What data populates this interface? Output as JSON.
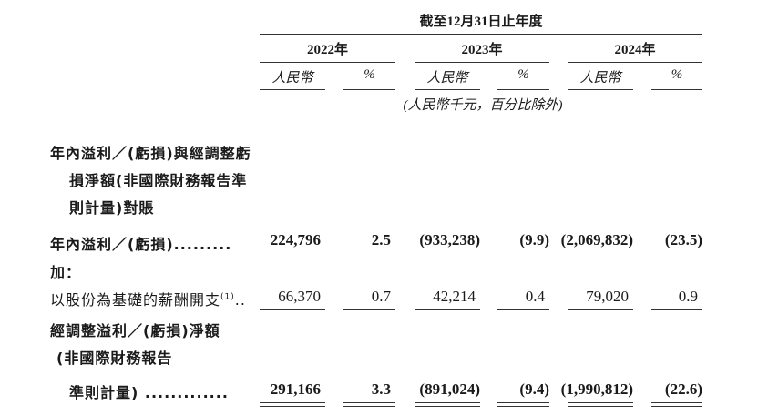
{
  "header": {
    "period": "截至12月31日止年度",
    "years": [
      "2022年",
      "2023年",
      "2024年"
    ],
    "col_rmb": "人民幣",
    "col_pct": "%",
    "units_note": "(人民幣千元，百分比除外)"
  },
  "section_title": [
    "年內溢利／(虧損)與經調整虧",
    "損淨額(非國際財務報告準",
    "則計量)對賬"
  ],
  "rows": {
    "profit": {
      "label": "年內溢利／(虧損).........",
      "values": [
        "224,796",
        "2.5",
        "(933,238)",
        "(9.9)",
        "(2,069,832)",
        "(23.5)"
      ]
    },
    "add": {
      "label": "加："
    },
    "sbc": {
      "label": "以股份為基礎的薪酬開支",
      "footnote": "(1)",
      "dots": "..",
      "values": [
        "66,370",
        "0.7",
        "42,214",
        "0.4",
        "79,020",
        "0.9"
      ]
    },
    "adjusted": {
      "label_lines": [
        "經調整溢利／(虧損)淨額",
        "(非國際財務報告",
        "準則計量) ............."
      ],
      "values": [
        "291,166",
        "3.3",
        "(891,024)",
        "(9.4)",
        "(1,990,812)",
        "(22.6)"
      ]
    }
  }
}
